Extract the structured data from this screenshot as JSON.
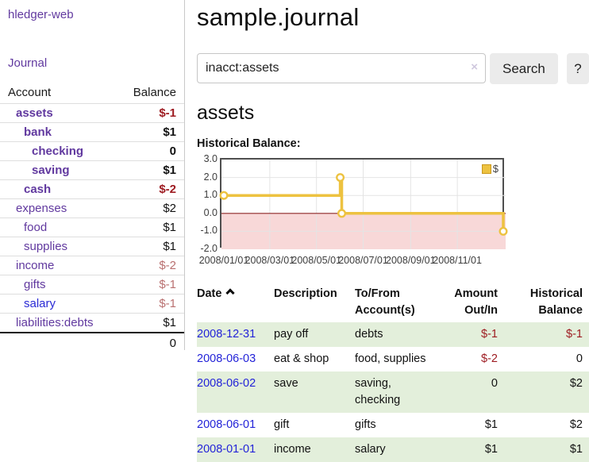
{
  "app": {
    "title": "hledger-web"
  },
  "sidebar": {
    "journal_label": "Journal",
    "accounts_table": {
      "headers": {
        "account": "Account",
        "balance": "Balance"
      },
      "rows": [
        {
          "name": "assets",
          "balance": "$-1",
          "depth": 1,
          "bold": true,
          "negative": "strong"
        },
        {
          "name": "bank",
          "balance": "$1",
          "depth": 2,
          "bold": true,
          "negative": "none"
        },
        {
          "name": "checking",
          "balance": "0",
          "depth": 3,
          "bold": true,
          "negative": "none"
        },
        {
          "name": "saving",
          "balance": "$1",
          "depth": 3,
          "bold": true,
          "negative": "none"
        },
        {
          "name": "cash",
          "balance": "$-2",
          "depth": 2,
          "bold": true,
          "negative": "strong"
        },
        {
          "name": "expenses",
          "balance": "$2",
          "depth": 1,
          "bold": false,
          "negative": "none"
        },
        {
          "name": "food",
          "balance": "$1",
          "depth": 2,
          "bold": false,
          "negative": "none"
        },
        {
          "name": "supplies",
          "balance": "$1",
          "depth": 2,
          "bold": false,
          "negative": "none"
        },
        {
          "name": "income",
          "balance": "$-2",
          "depth": 1,
          "bold": false,
          "negative": "muted"
        },
        {
          "name": "gifts",
          "balance": "$-1",
          "depth": 2,
          "bold": false,
          "negative": "muted"
        },
        {
          "name": "salary",
          "balance": "$-1",
          "depth": 2,
          "bold": false,
          "negative": "muted",
          "unvisited": true
        },
        {
          "name": "liabilities:debts",
          "balance": "$1",
          "depth": 1,
          "bold": false,
          "negative": "none"
        }
      ],
      "total": "0"
    }
  },
  "main": {
    "title": "sample.journal",
    "search": {
      "value": "inacct:assets",
      "clear_icon": "×",
      "button_label": "Search",
      "help_label": "?"
    },
    "account_heading": "assets"
  },
  "chart_data": {
    "type": "line",
    "title": "Historical Balance:",
    "step": true,
    "series": [
      {
        "name": "$",
        "color": "#edc240",
        "points": [
          {
            "date": "2008-01-01",
            "value": 1
          },
          {
            "date": "2008-06-01",
            "value": 2
          },
          {
            "date": "2008-06-03",
            "value": 0
          },
          {
            "date": "2008-12-31",
            "value": -1
          }
        ]
      }
    ],
    "x_range": [
      "2008-01-01",
      "2008-12-31"
    ],
    "x_ticks": [
      {
        "label": "2008/01/01",
        "date": "2008-01-01"
      },
      {
        "label": "2008/03/01",
        "date": "2008-03-01"
      },
      {
        "label": "2008/05/01",
        "date": "2008-05-01"
      },
      {
        "label": "2008/07/01",
        "date": "2008-07-01"
      },
      {
        "label": "2008/09/01",
        "date": "2008-09-01"
      },
      {
        "label": "2008/11/01",
        "date": "2008-11-01"
      }
    ],
    "y_ticks": [
      "3.0",
      "2.0",
      "1.0",
      "0.0",
      "-1.0",
      "-2.0"
    ],
    "ylim": [
      -2,
      3
    ],
    "grid": true,
    "legend_position": "top-right",
    "negative_region_color": "#f8d8d8",
    "zero_line_color": "#8f2727",
    "gridline_color": "#e4e4e4"
  },
  "register_table": {
    "headers": {
      "date": "Date",
      "description": "Description",
      "accounts": "To/From Account(s)",
      "amount": "Amount Out/In",
      "balance": "Historical Balance"
    },
    "sort": {
      "column": "date",
      "direction": "ascending"
    },
    "row_colors": {
      "odd": "#e3efdb",
      "even": "#ffffff"
    },
    "rows": [
      {
        "date": "2008-12-31",
        "description": "pay off",
        "accounts": "debts",
        "amount": "$-1",
        "balance": "$-1",
        "amount_negative": true,
        "balance_negative": true
      },
      {
        "date": "2008-06-03",
        "description": "eat & shop",
        "accounts": "food, supplies",
        "amount": "$-2",
        "balance": "0",
        "amount_negative": true,
        "balance_negative": false
      },
      {
        "date": "2008-06-02",
        "description": "save",
        "accounts": "saving, checking",
        "amount": "0",
        "balance": "$2",
        "amount_negative": false,
        "balance_negative": false
      },
      {
        "date": "2008-06-01",
        "description": "gift",
        "accounts": "gifts",
        "amount": "$1",
        "balance": "$2",
        "amount_negative": false,
        "balance_negative": false
      },
      {
        "date": "2008-01-01",
        "description": "income",
        "accounts": "salary",
        "amount": "$1",
        "balance": "$1",
        "amount_negative": false,
        "balance_negative": false
      }
    ]
  }
}
